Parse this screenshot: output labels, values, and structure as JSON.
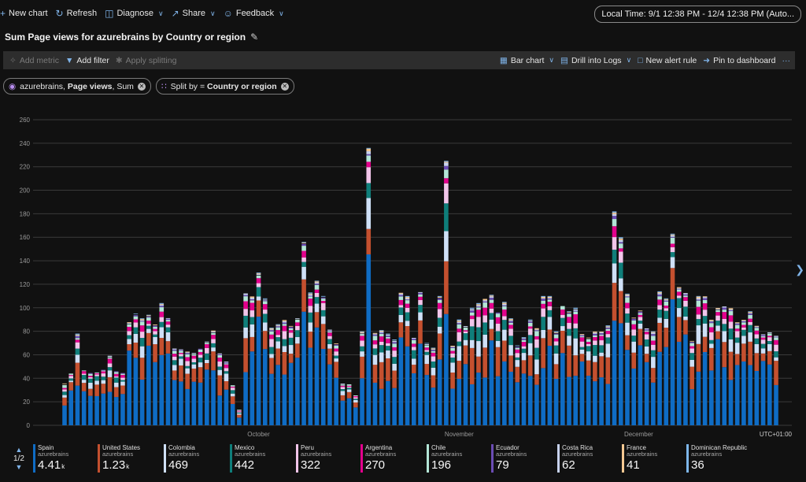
{
  "toolbar": {
    "new_chart": "New chart",
    "refresh": "Refresh",
    "diagnose": "Diagnose",
    "share": "Share",
    "feedback": "Feedback",
    "local_time": "Local Time: 9/1 12:38 PM - 12/4 12:38 PM (Auto..."
  },
  "chart_title": "Sum Page views for azurebrains by Country or region",
  "actions": {
    "add_metric": "Add metric",
    "add_filter": "Add filter",
    "apply_splitting": "Apply splitting",
    "bar_chart": "Bar chart",
    "drill_logs": "Drill into Logs",
    "new_alert": "New alert rule",
    "pin": "Pin to dashboard",
    "more": "···"
  },
  "pills": {
    "metric_prefix": "azurebrains, ",
    "metric_bold": "Page views",
    "metric_suffix": ", Sum",
    "split_prefix": "Split by = ",
    "split_bold": "Country or region"
  },
  "pager": "1/2",
  "colors": {
    "Spain": "#0f6cc4",
    "United States": "#c4502f",
    "Colombia": "#cfe0f7",
    "Mexico": "#0f7e7a",
    "Peru": "#f2c5ea",
    "Argentina": "#e3008c",
    "Chile": "#b3e6d7",
    "Ecuador": "#6b4cb4",
    "Costa Rica": "#c7d2ee",
    "France": "#f5c892",
    "Dominican Republic": "#7db6ea"
  },
  "chart_data": {
    "type": "bar",
    "stacked": true,
    "ylim": [
      0,
      260
    ],
    "yticks": [
      0,
      20,
      40,
      60,
      80,
      100,
      120,
      140,
      160,
      180,
      200,
      220,
      240,
      260
    ],
    "xtick_labels": [
      "October",
      "November",
      "December"
    ],
    "xtick_at_day_index": [
      30,
      61,
      91
    ],
    "timezone_label": "UTC+01:00",
    "grid": true,
    "legend_position": "bottom",
    "totals_estimated": [
      36,
      45,
      78,
      48,
      45,
      46,
      48,
      60,
      47,
      45,
      88,
      95,
      91,
      94,
      86,
      104,
      92,
      66,
      65,
      63,
      62,
      66,
      72,
      81,
      62,
      55,
      35,
      14,
      113,
      110,
      130,
      108,
      83,
      86,
      90,
      85,
      92,
      156,
      113,
      123,
      110,
      82,
      70,
      36,
      36,
      26,
      80,
      236,
      79,
      81,
      78,
      73,
      113,
      110,
      75,
      114,
      70,
      66,
      110,
      225,
      68,
      90,
      85,
      100,
      104,
      108,
      111,
      97,
      105,
      91,
      68,
      75,
      90,
      83,
      110,
      110,
      80,
      103,
      97,
      100,
      78,
      75,
      80,
      80,
      85,
      182,
      160,
      112,
      92,
      98,
      83,
      80,
      114,
      108,
      163,
      118,
      113,
      72,
      110,
      110,
      90,
      100,
      102,
      100,
      88,
      90,
      97,
      85,
      78,
      80,
      77
    ],
    "series": [
      {
        "name": "Spain",
        "sub": "azurebrains",
        "total": "4.41",
        "suffix": "k"
      },
      {
        "name": "United States",
        "sub": "azurebrains",
        "total": "1.23",
        "suffix": "k"
      },
      {
        "name": "Colombia",
        "sub": "azurebrains",
        "total": "469",
        "suffix": ""
      },
      {
        "name": "Mexico",
        "sub": "azurebrains",
        "total": "442",
        "suffix": ""
      },
      {
        "name": "Peru",
        "sub": "azurebrains",
        "total": "322",
        "suffix": ""
      },
      {
        "name": "Argentina",
        "sub": "azurebrains",
        "total": "270",
        "suffix": ""
      },
      {
        "name": "Chile",
        "sub": "azurebrains",
        "total": "196",
        "suffix": ""
      },
      {
        "name": "Ecuador",
        "sub": "azurebrains",
        "total": "79",
        "suffix": ""
      },
      {
        "name": "Costa Rica",
        "sub": "azurebrains",
        "total": "62",
        "suffix": ""
      },
      {
        "name": "France",
        "sub": "azurebrains",
        "total": "41",
        "suffix": ""
      },
      {
        "name": "Dominican Republic",
        "sub": "azurebrains",
        "total": "36",
        "suffix": ""
      }
    ]
  }
}
